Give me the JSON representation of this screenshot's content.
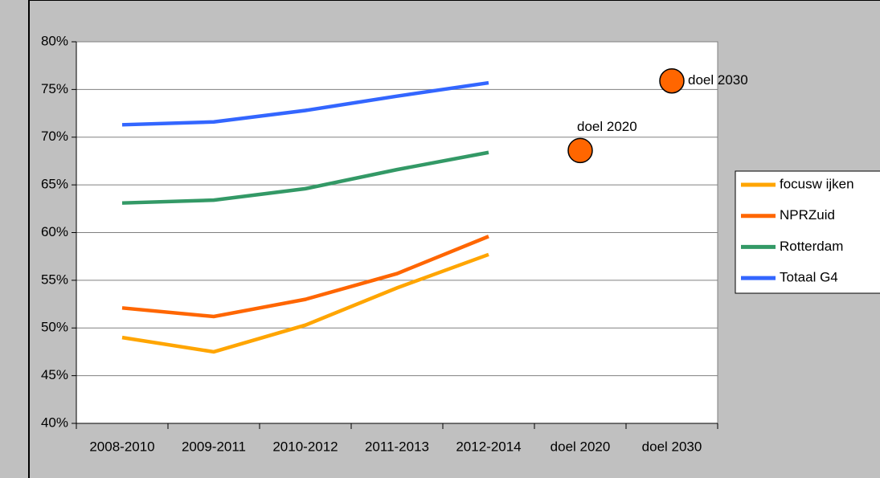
{
  "chart_data": {
    "type": "line",
    "categories": [
      "2008-2010",
      "2009-2011",
      "2010-2012",
      "2011-2013",
      "2012-2014",
      "doel 2020",
      "doel 2030"
    ],
    "series": [
      {
        "name": "focusw ijken",
        "color": "#ffa500",
        "values": [
          49.0,
          47.5,
          50.3,
          54.2,
          57.7,
          null,
          null
        ]
      },
      {
        "name": "NPRZuid",
        "color": "#ff6600",
        "values": [
          52.1,
          51.2,
          53.0,
          55.7,
          59.6,
          null,
          null
        ]
      },
      {
        "name": "Rotterdam",
        "color": "#339966",
        "values": [
          63.1,
          63.4,
          64.6,
          66.6,
          68.4,
          null,
          null
        ]
      },
      {
        "name": "Totaal G4",
        "color": "#3366ff",
        "values": [
          71.3,
          71.6,
          72.8,
          74.3,
          75.7,
          null,
          null
        ]
      }
    ],
    "targets": {
      "color": "#ff6600",
      "values": [
        null,
        null,
        null,
        null,
        null,
        68.6,
        75.9
      ],
      "labels": [
        null,
        null,
        null,
        null,
        null,
        "doel 2020",
        "doel 2030"
      ]
    },
    "ylim": [
      40,
      80
    ],
    "yticks": [
      {
        "value": 40,
        "label": "40%"
      },
      {
        "value": 45,
        "label": "45%"
      },
      {
        "value": 50,
        "label": "50%"
      },
      {
        "value": 55,
        "label": "55%"
      },
      {
        "value": 60,
        "label": "60%"
      },
      {
        "value": 65,
        "label": "65%"
      },
      {
        "value": 70,
        "label": "70%"
      },
      {
        "value": 75,
        "label": "75%"
      },
      {
        "value": 80,
        "label": "80%"
      }
    ],
    "grid": true,
    "legend": "right"
  }
}
